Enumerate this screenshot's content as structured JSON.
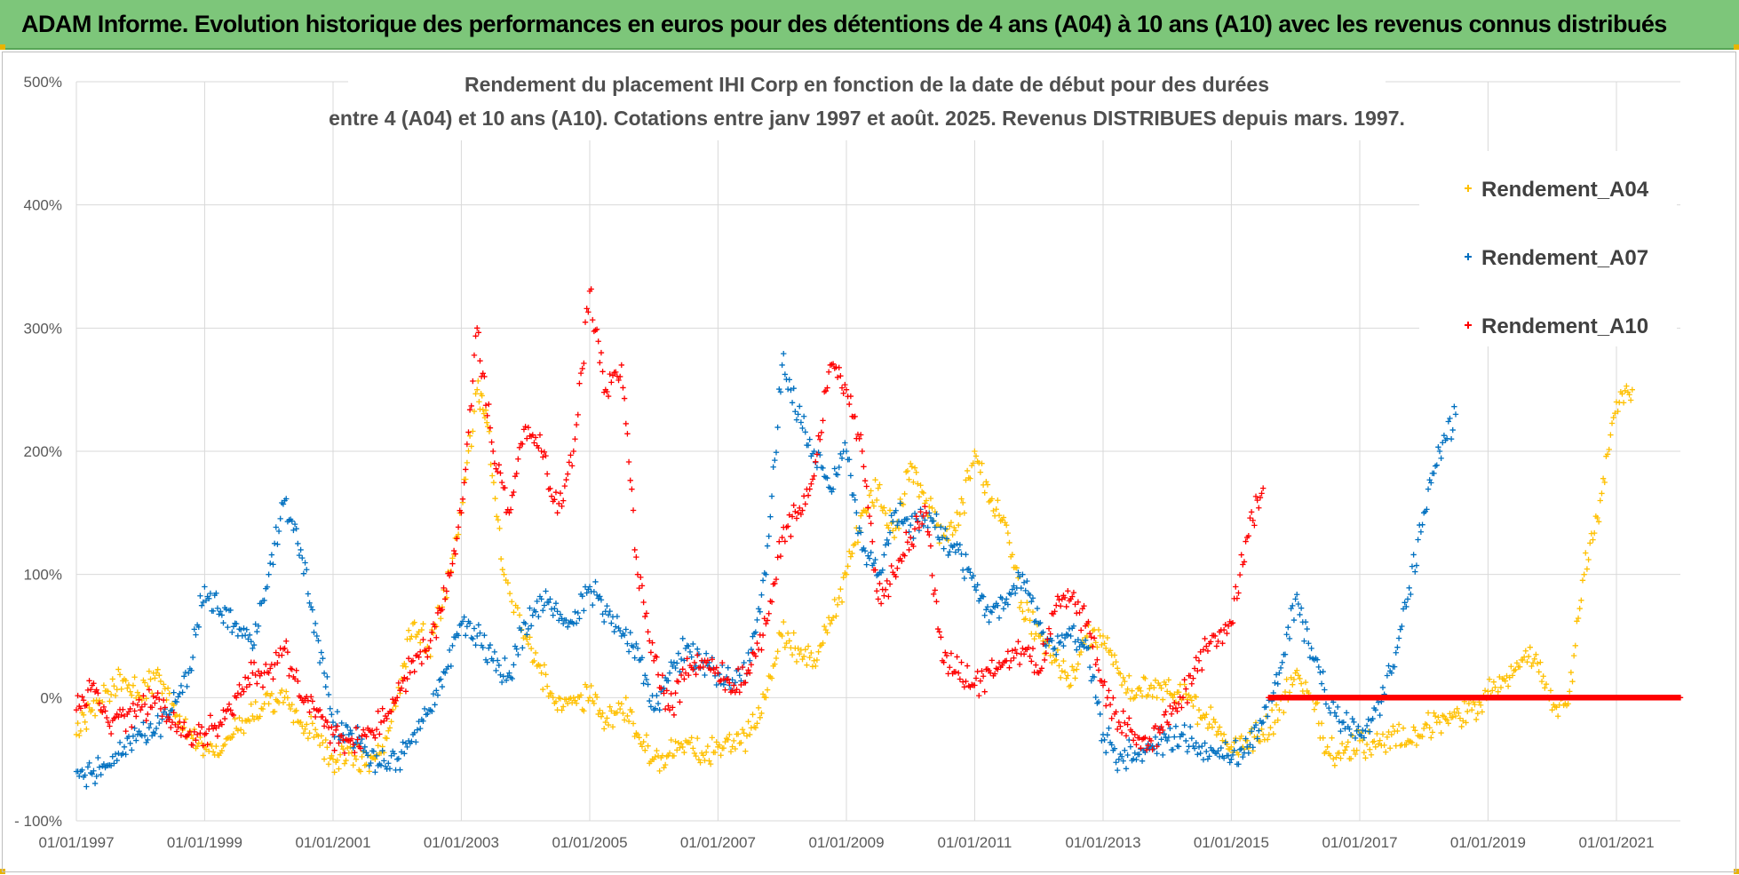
{
  "banner": {
    "text": "ADAM Informe. Evolution historique des performances en euros pour des détentions de 4 ans (A04) à 10 ans (A10) avec les revenus connus distribués"
  },
  "chart_data": {
    "type": "scatter",
    "title_line1": "Rendement du placement IHI Corp en fonction de la date de début pour des durées",
    "title_line2": "entre 4 (A04) et 10 ans (A10). Cotations entre janv 1997 et août. 2025. Revenus DISTRIBUES depuis mars. 1997.",
    "marker": "+",
    "grid": true,
    "legend_position": "top-right",
    "y_range": [
      -100,
      500
    ],
    "y_unit": "%",
    "y_ticks": [
      -100,
      0,
      100,
      200,
      300,
      400,
      500
    ],
    "y_tick_labels": [
      "- 100%",
      "0%",
      "100%",
      "200%",
      "300%",
      "400%",
      "500%"
    ],
    "x_range": [
      "1997-01-01",
      "2021-12-31"
    ],
    "x_ticks": [
      "1997-01-01",
      "1999-01-01",
      "2001-01-01",
      "2003-01-01",
      "2005-01-01",
      "2007-01-01",
      "2009-01-01",
      "2011-01-01",
      "2013-01-01",
      "2015-01-01",
      "2017-01-01",
      "2019-01-01",
      "2021-01-01"
    ],
    "x_tick_labels": [
      "01/01/1997",
      "01/01/1999",
      "01/01/2001",
      "01/01/2003",
      "01/01/2005",
      "01/01/2007",
      "01/01/2009",
      "01/01/2011",
      "01/01/2013",
      "01/01/2015",
      "01/01/2017",
      "01/01/2019",
      "01/01/2021"
    ],
    "series": [
      {
        "name": "Rendement_A04",
        "color": "#ffc000",
        "points": [
          [
            "1997-01-01",
            -30
          ],
          [
            "1997-04-01",
            -10
          ],
          [
            "1997-07-01",
            5
          ],
          [
            "1997-10-01",
            15
          ],
          [
            "1998-01-01",
            0
          ],
          [
            "1998-04-01",
            20
          ],
          [
            "1998-07-01",
            -5
          ],
          [
            "1998-10-01",
            -30
          ],
          [
            "1999-01-01",
            -40
          ],
          [
            "1999-04-01",
            -45
          ],
          [
            "1999-07-01",
            -25
          ],
          [
            "1999-10-01",
            -15
          ],
          [
            "2000-01-01",
            -5
          ],
          [
            "2000-04-01",
            0
          ],
          [
            "2000-07-01",
            -20
          ],
          [
            "2000-10-01",
            -30
          ],
          [
            "2001-01-01",
            -50
          ],
          [
            "2001-04-01",
            -45
          ],
          [
            "2001-07-01",
            -55
          ],
          [
            "2001-10-01",
            -45
          ],
          [
            "2002-01-01",
            0
          ],
          [
            "2002-04-01",
            60
          ],
          [
            "2002-07-01",
            40
          ],
          [
            "2002-10-01",
            80
          ],
          [
            "2003-01-01",
            150
          ],
          [
            "2003-04-01",
            250
          ],
          [
            "2003-06-01",
            220
          ],
          [
            "2003-09-01",
            100
          ],
          [
            "2004-01-01",
            50
          ],
          [
            "2004-04-01",
            20
          ],
          [
            "2004-07-01",
            -10
          ],
          [
            "2004-10-01",
            0
          ],
          [
            "2005-01-01",
            0
          ],
          [
            "2005-04-01",
            -20
          ],
          [
            "2005-07-01",
            -5
          ],
          [
            "2005-10-01",
            -30
          ],
          [
            "2006-01-01",
            -50
          ],
          [
            "2006-04-01",
            -45
          ],
          [
            "2006-07-01",
            -35
          ],
          [
            "2006-10-01",
            -45
          ],
          [
            "2007-01-01",
            -40
          ],
          [
            "2007-04-01",
            -35
          ],
          [
            "2007-07-01",
            -30
          ],
          [
            "2007-10-01",
            0
          ],
          [
            "2008-01-01",
            50
          ],
          [
            "2008-04-01",
            40
          ],
          [
            "2008-07-01",
            30
          ],
          [
            "2008-10-01",
            60
          ],
          [
            "2009-01-01",
            100
          ],
          [
            "2009-04-01",
            150
          ],
          [
            "2009-07-01",
            170
          ],
          [
            "2009-10-01",
            130
          ],
          [
            "2010-01-01",
            190
          ],
          [
            "2010-04-01",
            160
          ],
          [
            "2010-07-01",
            130
          ],
          [
            "2010-10-01",
            140
          ],
          [
            "2011-01-01",
            200
          ],
          [
            "2011-04-01",
            160
          ],
          [
            "2011-07-01",
            140
          ],
          [
            "2011-10-01",
            70
          ],
          [
            "2012-01-01",
            50
          ],
          [
            "2012-04-01",
            30
          ],
          [
            "2012-07-01",
            10
          ],
          [
            "2012-10-01",
            50
          ],
          [
            "2013-01-01",
            50
          ],
          [
            "2013-04-01",
            20
          ],
          [
            "2013-07-01",
            0
          ],
          [
            "2013-10-01",
            10
          ],
          [
            "2014-01-01",
            5
          ],
          [
            "2014-04-01",
            0
          ],
          [
            "2014-07-01",
            -10
          ],
          [
            "2014-10-01",
            -20
          ],
          [
            "2015-01-01",
            -40
          ],
          [
            "2015-04-01",
            -35
          ],
          [
            "2015-07-01",
            -30
          ],
          [
            "2015-10-01",
            -10
          ],
          [
            "2016-01-01",
            20
          ],
          [
            "2016-04-01",
            0
          ],
          [
            "2016-07-01",
            -40
          ],
          [
            "2016-10-01",
            -45
          ],
          [
            "2017-01-01",
            -35
          ],
          [
            "2017-04-01",
            -40
          ],
          [
            "2017-07-01",
            -30
          ],
          [
            "2017-10-01",
            -35
          ],
          [
            "2018-01-01",
            -25
          ],
          [
            "2018-04-01",
            -20
          ],
          [
            "2018-07-01",
            -15
          ],
          [
            "2018-10-01",
            -10
          ],
          [
            "2019-01-01",
            5
          ],
          [
            "2019-04-01",
            15
          ],
          [
            "2019-07-01",
            25
          ],
          [
            "2019-10-01",
            35
          ],
          [
            "2020-01-01",
            -10
          ],
          [
            "2020-04-01",
            -5
          ],
          [
            "2020-07-01",
            100
          ],
          [
            "2020-10-01",
            160
          ],
          [
            "2021-01-01",
            240
          ],
          [
            "2021-04-01",
            250
          ]
        ]
      },
      {
        "name": "Rendement_A07",
        "color": "#0070c0",
        "points": [
          [
            "1997-01-01",
            -60
          ],
          [
            "1997-04-01",
            -62
          ],
          [
            "1997-07-01",
            -55
          ],
          [
            "1997-10-01",
            -40
          ],
          [
            "1998-01-01",
            -30
          ],
          [
            "1998-04-01",
            -25
          ],
          [
            "1998-07-01",
            -10
          ],
          [
            "1998-10-01",
            20
          ],
          [
            "1999-01-01",
            90
          ],
          [
            "1999-04-01",
            70
          ],
          [
            "1999-07-01",
            60
          ],
          [
            "1999-10-01",
            40
          ],
          [
            "2000-01-01",
            100
          ],
          [
            "2000-04-01",
            160
          ],
          [
            "2000-07-01",
            120
          ],
          [
            "2000-10-01",
            50
          ],
          [
            "2001-01-01",
            -20
          ],
          [
            "2001-04-01",
            -30
          ],
          [
            "2001-07-01",
            -40
          ],
          [
            "2001-10-01",
            -55
          ],
          [
            "2002-01-01",
            -50
          ],
          [
            "2002-04-01",
            -30
          ],
          [
            "2002-07-01",
            -10
          ],
          [
            "2002-10-01",
            20
          ],
          [
            "2003-01-01",
            60
          ],
          [
            "2003-04-01",
            50
          ],
          [
            "2003-07-01",
            30
          ],
          [
            "2003-10-01",
            20
          ],
          [
            "2004-01-01",
            60
          ],
          [
            "2004-04-01",
            80
          ],
          [
            "2004-07-01",
            70
          ],
          [
            "2004-10-01",
            60
          ],
          [
            "2005-01-01",
            90
          ],
          [
            "2005-04-01",
            70
          ],
          [
            "2005-07-01",
            50
          ],
          [
            "2005-10-01",
            40
          ],
          [
            "2006-01-01",
            -10
          ],
          [
            "2006-04-01",
            20
          ],
          [
            "2006-07-01",
            40
          ],
          [
            "2006-10-01",
            30
          ],
          [
            "2007-01-01",
            20
          ],
          [
            "2007-04-01",
            10
          ],
          [
            "2007-07-01",
            30
          ],
          [
            "2007-10-01",
            100
          ],
          [
            "2008-01-01",
            270
          ],
          [
            "2008-04-01",
            230
          ],
          [
            "2008-07-01",
            200
          ],
          [
            "2008-10-01",
            170
          ],
          [
            "2009-01-01",
            200
          ],
          [
            "2009-04-01",
            120
          ],
          [
            "2009-07-01",
            100
          ],
          [
            "2009-10-01",
            150
          ],
          [
            "2010-01-01",
            140
          ],
          [
            "2010-04-01",
            150
          ],
          [
            "2010-07-01",
            130
          ],
          [
            "2010-10-01",
            120
          ],
          [
            "2011-01-01",
            90
          ],
          [
            "2011-04-01",
            70
          ],
          [
            "2011-07-01",
            80
          ],
          [
            "2011-10-01",
            100
          ],
          [
            "2012-01-01",
            60
          ],
          [
            "2012-04-01",
            40
          ],
          [
            "2012-07-01",
            50
          ],
          [
            "2012-10-01",
            40
          ],
          [
            "2013-01-01",
            -30
          ],
          [
            "2013-04-01",
            -50
          ],
          [
            "2013-07-01",
            -45
          ],
          [
            "2013-10-01",
            -40
          ],
          [
            "2014-01-01",
            -35
          ],
          [
            "2014-04-01",
            -30
          ],
          [
            "2014-07-01",
            -40
          ],
          [
            "2014-10-01",
            -45
          ],
          [
            "2015-01-01",
            -50
          ],
          [
            "2015-04-01",
            -40
          ],
          [
            "2015-07-01",
            -20
          ],
          [
            "2015-10-01",
            20
          ],
          [
            "2016-01-01",
            80
          ],
          [
            "2016-04-01",
            40
          ],
          [
            "2016-07-01",
            0
          ],
          [
            "2016-10-01",
            -20
          ],
          [
            "2017-01-01",
            -30
          ],
          [
            "2017-04-01",
            -10
          ],
          [
            "2017-07-01",
            20
          ],
          [
            "2017-10-01",
            80
          ],
          [
            "2018-01-01",
            150
          ],
          [
            "2018-04-01",
            200
          ],
          [
            "2018-07-01",
            230
          ]
        ]
      },
      {
        "name": "Rendement_A10",
        "color": "#ff0000",
        "points": [
          [
            "1997-01-01",
            -10
          ],
          [
            "1997-04-01",
            10
          ],
          [
            "1997-07-01",
            -20
          ],
          [
            "1997-10-01",
            -15
          ],
          [
            "1998-01-01",
            -10
          ],
          [
            "1998-04-01",
            0
          ],
          [
            "1998-07-01",
            -20
          ],
          [
            "1998-10-01",
            -30
          ],
          [
            "1999-01-01",
            -30
          ],
          [
            "1999-04-01",
            -20
          ],
          [
            "1999-07-01",
            0
          ],
          [
            "1999-10-01",
            20
          ],
          [
            "2000-01-01",
            20
          ],
          [
            "2000-04-01",
            40
          ],
          [
            "2000-07-01",
            0
          ],
          [
            "2000-10-01",
            -10
          ],
          [
            "2001-01-01",
            -30
          ],
          [
            "2001-04-01",
            -35
          ],
          [
            "2001-07-01",
            -30
          ],
          [
            "2001-10-01",
            -20
          ],
          [
            "2002-01-01",
            0
          ],
          [
            "2002-04-01",
            30
          ],
          [
            "2002-07-01",
            40
          ],
          [
            "2002-10-01",
            80
          ],
          [
            "2003-01-01",
            150
          ],
          [
            "2003-04-01",
            300
          ],
          [
            "2003-07-01",
            200
          ],
          [
            "2003-10-01",
            150
          ],
          [
            "2004-01-01",
            220
          ],
          [
            "2004-04-01",
            200
          ],
          [
            "2004-07-01",
            150
          ],
          [
            "2004-10-01",
            200
          ],
          [
            "2005-01-01",
            330
          ],
          [
            "2005-04-01",
            250
          ],
          [
            "2005-07-01",
            270
          ],
          [
            "2005-10-01",
            100
          ],
          [
            "2006-01-01",
            30
          ],
          [
            "2006-04-01",
            -10
          ],
          [
            "2006-07-01",
            20
          ],
          [
            "2006-10-01",
            30
          ],
          [
            "2007-01-01",
            20
          ],
          [
            "2007-04-01",
            10
          ],
          [
            "2007-07-01",
            20
          ],
          [
            "2007-10-01",
            60
          ],
          [
            "2008-01-01",
            130
          ],
          [
            "2008-04-01",
            150
          ],
          [
            "2008-07-01",
            180
          ],
          [
            "2008-10-01",
            270
          ],
          [
            "2009-01-01",
            250
          ],
          [
            "2009-04-01",
            200
          ],
          [
            "2009-07-01",
            80
          ],
          [
            "2009-10-01",
            100
          ],
          [
            "2010-01-01",
            130
          ],
          [
            "2010-04-01",
            150
          ],
          [
            "2010-07-01",
            30
          ],
          [
            "2010-10-01",
            20
          ],
          [
            "2011-01-01",
            10
          ],
          [
            "2011-04-01",
            20
          ],
          [
            "2011-07-01",
            30
          ],
          [
            "2011-10-01",
            40
          ],
          [
            "2012-01-01",
            20
          ],
          [
            "2012-04-01",
            70
          ],
          [
            "2012-07-01",
            80
          ],
          [
            "2012-10-01",
            60
          ],
          [
            "2013-01-01",
            10
          ],
          [
            "2013-04-01",
            -20
          ],
          [
            "2013-07-01",
            -30
          ],
          [
            "2013-10-01",
            -35
          ],
          [
            "2014-01-01",
            -20
          ],
          [
            "2014-04-01",
            0
          ],
          [
            "2014-07-01",
            30
          ],
          [
            "2014-10-01",
            50
          ],
          [
            "2015-01-01",
            60
          ],
          [
            "2015-04-01",
            130
          ],
          [
            "2015-07-01",
            170
          ]
        ]
      }
    ]
  }
}
